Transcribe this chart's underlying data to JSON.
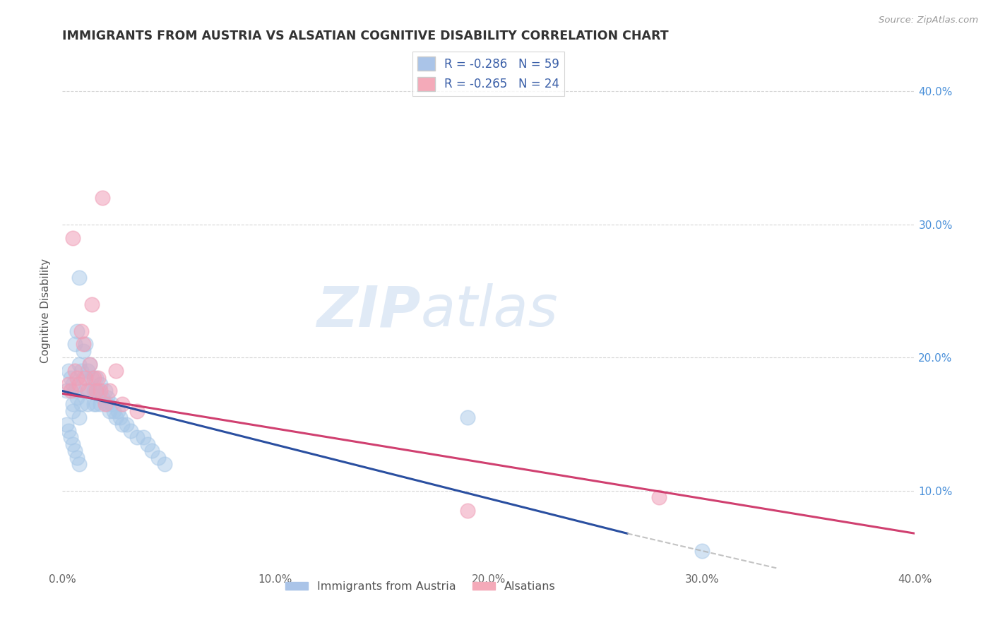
{
  "title": "IMMIGRANTS FROM AUSTRIA VS ALSATIAN COGNITIVE DISABILITY CORRELATION CHART",
  "source": "Source: ZipAtlas.com",
  "ylabel": "Cognitive Disability",
  "xlim": [
    0.0,
    0.4
  ],
  "ylim": [
    0.04,
    0.43
  ],
  "xticks": [
    0.0,
    0.1,
    0.2,
    0.3,
    0.4
  ],
  "xtick_labels": [
    "0.0%",
    "10.0%",
    "20.0%",
    "30.0%",
    "40.0%"
  ],
  "yticks": [
    0.1,
    0.2,
    0.3,
    0.4
  ],
  "ytick_labels": [
    "10.0%",
    "20.0%",
    "30.0%",
    "40.0%"
  ],
  "ytick_labels_right": [
    "10.0%",
    "20.0%",
    "30.0%",
    "40.0%"
  ],
  "watermark_zip": "ZIP",
  "watermark_atlas": "atlas",
  "legend_entries": [
    {
      "label": "R = -0.286   N = 59",
      "color": "#aac4e8"
    },
    {
      "label": "R = -0.265   N = 24",
      "color": "#f4aab9"
    }
  ],
  "legend_labels_bottom": [
    "Immigrants from Austria",
    "Alsatians"
  ],
  "blue_scatter_x": [
    0.002,
    0.003,
    0.004,
    0.005,
    0.005,
    0.005,
    0.006,
    0.006,
    0.007,
    0.007,
    0.008,
    0.008,
    0.008,
    0.009,
    0.009,
    0.01,
    0.01,
    0.011,
    0.011,
    0.012,
    0.012,
    0.013,
    0.013,
    0.014,
    0.015,
    0.015,
    0.016,
    0.016,
    0.017,
    0.018,
    0.018,
    0.019,
    0.02,
    0.021,
    0.021,
    0.022,
    0.023,
    0.024,
    0.025,
    0.026,
    0.027,
    0.028,
    0.03,
    0.032,
    0.035,
    0.038,
    0.04,
    0.042,
    0.045,
    0.048,
    0.002,
    0.003,
    0.004,
    0.005,
    0.006,
    0.007,
    0.008,
    0.3,
    0.19
  ],
  "blue_scatter_y": [
    0.175,
    0.19,
    0.185,
    0.18,
    0.165,
    0.16,
    0.21,
    0.175,
    0.22,
    0.17,
    0.26,
    0.195,
    0.155,
    0.19,
    0.165,
    0.205,
    0.185,
    0.21,
    0.175,
    0.19,
    0.165,
    0.195,
    0.175,
    0.185,
    0.175,
    0.165,
    0.185,
    0.165,
    0.175,
    0.18,
    0.165,
    0.17,
    0.175,
    0.17,
    0.165,
    0.16,
    0.165,
    0.16,
    0.155,
    0.16,
    0.155,
    0.15,
    0.15,
    0.145,
    0.14,
    0.14,
    0.135,
    0.13,
    0.125,
    0.12,
    0.15,
    0.145,
    0.14,
    0.135,
    0.13,
    0.125,
    0.12,
    0.055,
    0.155
  ],
  "pink_scatter_x": [
    0.003,
    0.004,
    0.005,
    0.006,
    0.007,
    0.008,
    0.009,
    0.01,
    0.011,
    0.012,
    0.013,
    0.014,
    0.015,
    0.016,
    0.017,
    0.018,
    0.019,
    0.02,
    0.022,
    0.025,
    0.028,
    0.19,
    0.035,
    0.28
  ],
  "pink_scatter_y": [
    0.18,
    0.175,
    0.29,
    0.19,
    0.185,
    0.18,
    0.22,
    0.21,
    0.185,
    0.175,
    0.195,
    0.24,
    0.185,
    0.175,
    0.185,
    0.175,
    0.32,
    0.165,
    0.175,
    0.19,
    0.165,
    0.085,
    0.16,
    0.095
  ],
  "blue_line_x": [
    0.0,
    0.265
  ],
  "blue_line_y": [
    0.175,
    0.068
  ],
  "pink_line_x": [
    0.0,
    0.4
  ],
  "pink_line_y": [
    0.173,
    0.068
  ],
  "dash_line_x": [
    0.265,
    0.335
  ],
  "dash_line_y": [
    0.068,
    0.042
  ],
  "scatter_size": 220,
  "background_color": "#ffffff",
  "grid_color": "#cccccc",
  "title_color": "#333333",
  "blue_color": "#a8c8e8",
  "pink_color": "#f0a0b8",
  "blue_line_color": "#2a4fa0",
  "pink_line_color": "#d04070"
}
